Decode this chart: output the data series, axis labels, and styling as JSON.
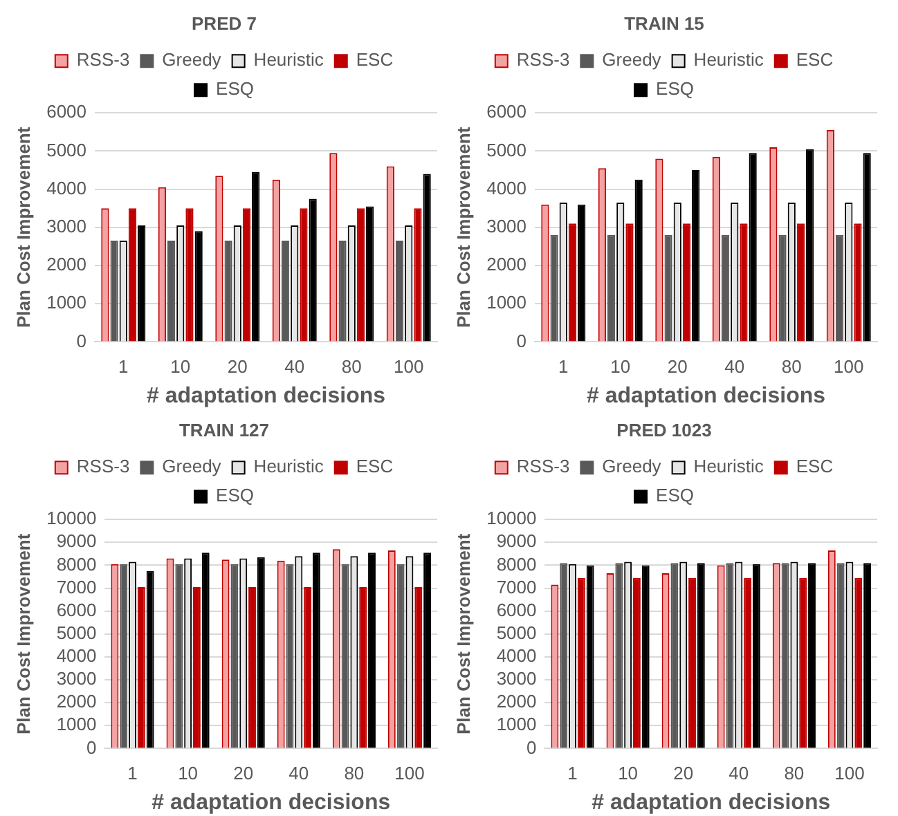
{
  "chart_data": [
    {
      "type": "bar",
      "title": "PRED 7",
      "xlabel": "# adaptation decisions",
      "ylabel": "Plan Cost Improvement",
      "categories": [
        "1",
        "10",
        "20",
        "40",
        "80",
        "100"
      ],
      "ylim": [
        0,
        6000
      ],
      "yticks": [
        0,
        1000,
        2000,
        3000,
        4000,
        5000,
        6000
      ],
      "grid": "y",
      "legend": "top",
      "series": [
        {
          "name": "RSS-3",
          "color": "#f4a3a3",
          "values": [
            3500,
            4050,
            4350,
            4250,
            4950,
            4600
          ]
        },
        {
          "name": "Greedy",
          "color": "#595959",
          "values": [
            2650,
            2650,
            2650,
            2650,
            2650,
            2650
          ]
        },
        {
          "name": "Heuristic",
          "color": "#e6e6e6",
          "values": [
            2650,
            3050,
            3050,
            3050,
            3050,
            3050
          ]
        },
        {
          "name": "ESC",
          "color": "#c00000",
          "values": [
            3500,
            3500,
            3500,
            3500,
            3500,
            3500
          ]
        },
        {
          "name": "ESQ",
          "color": "#000000",
          "values": [
            3050,
            2900,
            4450,
            3750,
            3550,
            4400
          ]
        }
      ]
    },
    {
      "type": "bar",
      "title": "TRAIN 15",
      "xlabel": "# adaptation decisions",
      "ylabel": "Plan Cost Improvement",
      "categories": [
        "1",
        "10",
        "20",
        "40",
        "80",
        "100"
      ],
      "ylim": [
        0,
        6000
      ],
      "yticks": [
        0,
        1000,
        2000,
        3000,
        4000,
        5000,
        6000
      ],
      "grid": "y",
      "legend": "top",
      "series": [
        {
          "name": "RSS-3",
          "color": "#f4a3a3",
          "values": [
            3600,
            4550,
            4800,
            4850,
            5100,
            5550
          ]
        },
        {
          "name": "Greedy",
          "color": "#595959",
          "values": [
            2800,
            2800,
            2800,
            2800,
            2800,
            2800
          ]
        },
        {
          "name": "Heuristic",
          "color": "#e6e6e6",
          "values": [
            3650,
            3650,
            3650,
            3650,
            3650,
            3650
          ]
        },
        {
          "name": "ESC",
          "color": "#c00000",
          "values": [
            3100,
            3100,
            3100,
            3100,
            3100,
            3100
          ]
        },
        {
          "name": "ESQ",
          "color": "#000000",
          "values": [
            3600,
            4250,
            4500,
            4950,
            5050,
            4950
          ]
        }
      ]
    },
    {
      "type": "bar",
      "title": "TRAIN 127",
      "xlabel": "# adaptation decisions",
      "ylabel": "Plan Cost Improvement",
      "categories": [
        "1",
        "10",
        "20",
        "40",
        "80",
        "100"
      ],
      "ylim": [
        0,
        10000
      ],
      "yticks": [
        0,
        1000,
        2000,
        3000,
        4000,
        5000,
        6000,
        7000,
        8000,
        9000,
        10000
      ],
      "grid": "y",
      "legend": "top",
      "series": [
        {
          "name": "RSS-3",
          "color": "#f4a3a3",
          "values": [
            8050,
            8300,
            8250,
            8200,
            8700,
            8650
          ]
        },
        {
          "name": "Greedy",
          "color": "#595959",
          "values": [
            8050,
            8050,
            8050,
            8050,
            8050,
            8050
          ]
        },
        {
          "name": "Heuristic",
          "color": "#e6e6e6",
          "values": [
            8150,
            8300,
            8300,
            8400,
            8400,
            8400
          ]
        },
        {
          "name": "ESC",
          "color": "#c00000",
          "values": [
            7050,
            7050,
            7050,
            7050,
            7050,
            7050
          ]
        },
        {
          "name": "ESQ",
          "color": "#000000",
          "values": [
            7750,
            8550,
            8350,
            8550,
            8550,
            8550
          ]
        }
      ]
    },
    {
      "type": "bar",
      "title": "PRED 1023",
      "xlabel": "# adaptation decisions",
      "ylabel": "Plan Cost Improvement",
      "categories": [
        "1",
        "10",
        "20",
        "40",
        "80",
        "100"
      ],
      "ylim": [
        0,
        10000
      ],
      "yticks": [
        0,
        1000,
        2000,
        3000,
        4000,
        5000,
        6000,
        7000,
        8000,
        9000,
        10000
      ],
      "grid": "y",
      "legend": "top",
      "series": [
        {
          "name": "RSS-3",
          "color": "#f4a3a3",
          "values": [
            7150,
            7650,
            7650,
            8000,
            8100,
            8650
          ]
        },
        {
          "name": "Greedy",
          "color": "#595959",
          "values": [
            8100,
            8100,
            8100,
            8100,
            8100,
            8100
          ]
        },
        {
          "name": "Heuristic",
          "color": "#e6e6e6",
          "values": [
            8050,
            8150,
            8150,
            8150,
            8150,
            8150
          ]
        },
        {
          "name": "ESC",
          "color": "#c00000",
          "values": [
            7450,
            7450,
            7450,
            7450,
            7450,
            7450
          ]
        },
        {
          "name": "ESQ",
          "color": "#000000",
          "values": [
            8000,
            8000,
            8100,
            8050,
            8100,
            8100
          ]
        }
      ]
    }
  ]
}
